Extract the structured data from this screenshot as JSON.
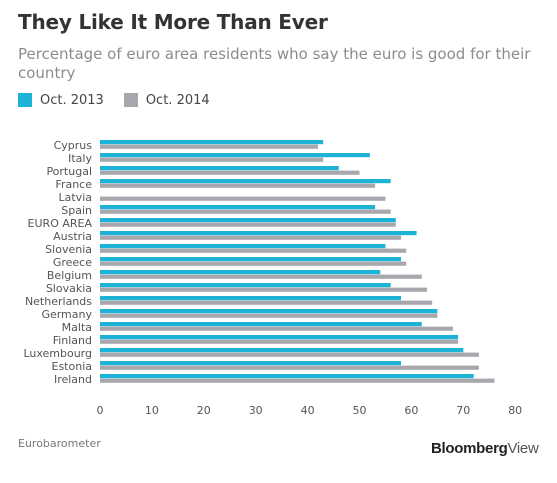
{
  "header": {
    "title": "They Like It More Than Ever",
    "subtitle": "Percentage of euro area residents who say the euro is good for their country"
  },
  "footer": {
    "source": "Eurobarometer",
    "brand_main": "Bloomberg",
    "brand_suffix": "View"
  },
  "colors": {
    "oct2013": "#1db3d6",
    "oct2014": "#a7a7ad",
    "axis_text": "#555555"
  },
  "chart_data": {
    "type": "bar",
    "orientation": "horizontal",
    "title": "They Like It More Than Ever",
    "subtitle": "Percentage of euro area residents who say the euro is good for their country",
    "xlabel": "",
    "ylabel": "",
    "xlim": [
      0,
      80
    ],
    "xticks": [
      0,
      10,
      20,
      30,
      40,
      50,
      60,
      70,
      80
    ],
    "grid": false,
    "legend_position": "top-left",
    "categories": [
      "Cyprus",
      "Italy",
      "Portugal",
      "France",
      "Latvia",
      "Spain",
      "EURO AREA",
      "Austria",
      "Slovenia",
      "Greece",
      "Belgium",
      "Slovakia",
      "Netherlands",
      "Germany",
      "Malta",
      "Finland",
      "Luxembourg",
      "Estonia",
      "Ireland"
    ],
    "series": [
      {
        "name": "Oct. 2013",
        "color": "#1db3d6",
        "values": [
          43,
          52,
          46,
          56,
          null,
          53,
          57,
          61,
          55,
          58,
          54,
          56,
          58,
          65,
          62,
          69,
          70,
          58,
          72
        ]
      },
      {
        "name": "Oct. 2014",
        "color": "#a7a7ad",
        "values": [
          42,
          43,
          50,
          53,
          55,
          56,
          57,
          58,
          59,
          59,
          62,
          63,
          64,
          65,
          68,
          69,
          73,
          73,
          76
        ]
      }
    ]
  }
}
